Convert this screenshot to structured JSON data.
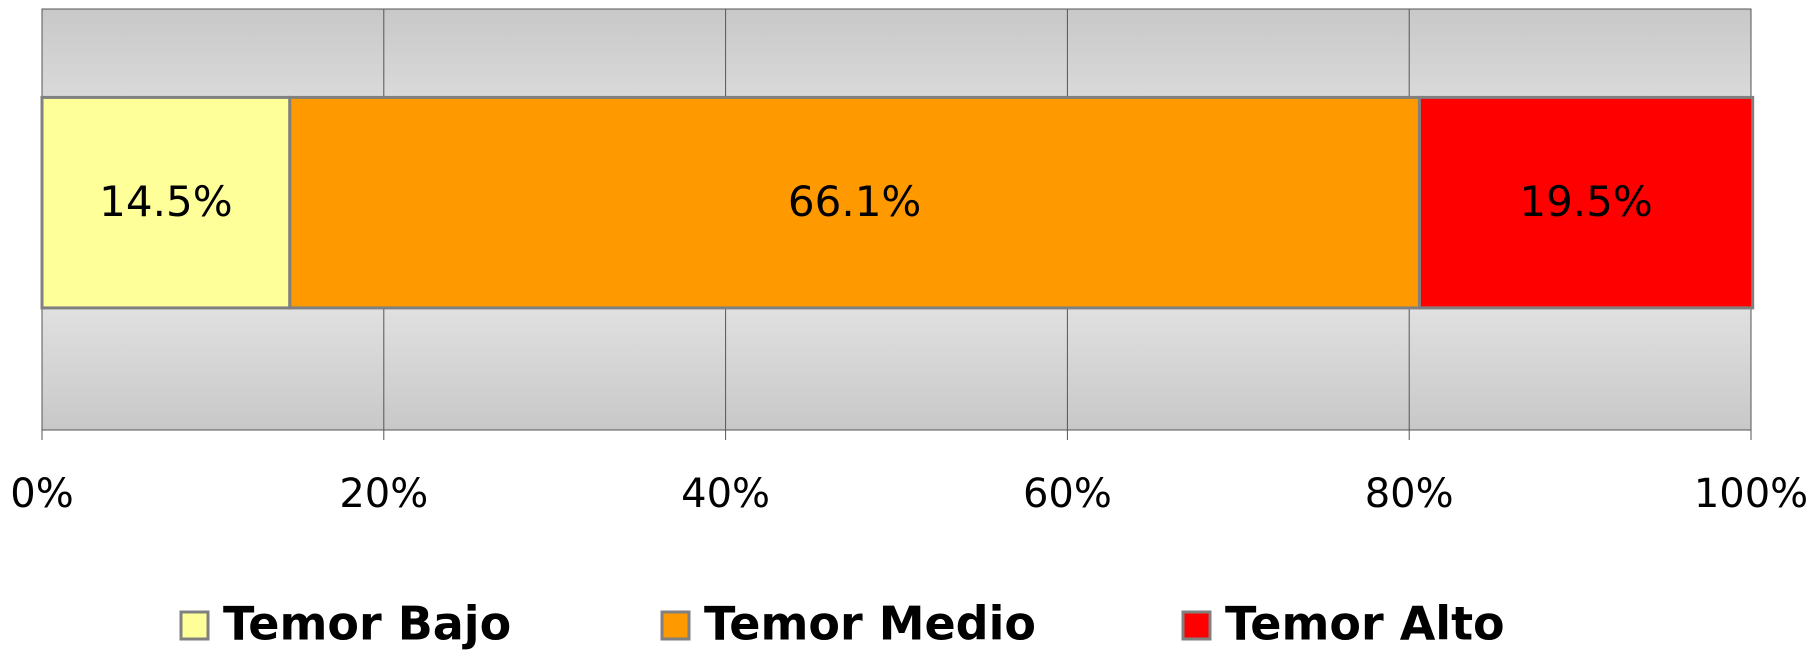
{
  "chart_data": {
    "type": "stacked-bar-horizontal",
    "categories": [
      null
    ],
    "series": [
      {
        "name": "Temor Bajo",
        "color": "#ffff99",
        "values": [
          14.5
        ],
        "value_labels": [
          "14.5%"
        ]
      },
      {
        "name": "Temor Medio",
        "color": "#ff9900",
        "values": [
          66.1
        ],
        "value_labels": [
          "66.1%"
        ]
      },
      {
        "name": "Temor Alto",
        "color": "#ff0000",
        "values": [
          19.5
        ],
        "value_labels": [
          "19.5%"
        ]
      }
    ],
    "xlim": [
      0,
      100
    ],
    "xticks": [
      {
        "value": 0,
        "label": "0%"
      },
      {
        "value": 20,
        "label": "20%"
      },
      {
        "value": 40,
        "label": "40%"
      },
      {
        "value": 60,
        "label": "60%"
      },
      {
        "value": 80,
        "label": "80%"
      },
      {
        "value": 100,
        "label": "100%"
      }
    ],
    "grid": true,
    "legend": "bottom"
  }
}
